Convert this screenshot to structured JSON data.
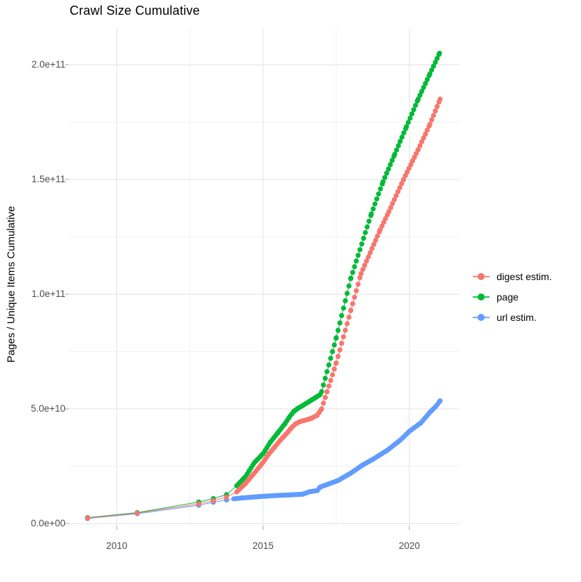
{
  "title": "Crawl Size Cumulative",
  "y_axis_title": "Pages / Unique Items Cumulative",
  "chart_data": {
    "type": "line",
    "title": "Crawl Size Cumulative",
    "xlabel": "",
    "ylabel": "Pages / Unique Items Cumulative",
    "grid": true,
    "legend_position": "right",
    "x_tick_labels": [
      "2010",
      "2015",
      "2020"
    ],
    "x_ticks": [
      2010,
      2015,
      2020
    ],
    "x_minor_ticks": [
      2012.5,
      2017.5
    ],
    "y_tick_labels": [
      "0.0e+00",
      "5.0e+10",
      "1.0e+11",
      "1.5e+11",
      "2.0e+11"
    ],
    "y_ticks_billions": [
      0,
      50,
      100,
      150,
      200
    ],
    "y_minor_ticks_billions": [
      25,
      75,
      125,
      175
    ],
    "xlim": [
      2008.4,
      2021.9
    ],
    "ylim_billions": [
      -1,
      216
    ],
    "unit_note": "y values stored in billions (1e9) of pages / unique items, cumulative",
    "series": [
      {
        "name": "url estim.",
        "color": "#619CFF",
        "points_year_billions": [
          [
            2009.0,
            2.2
          ],
          [
            2010.7,
            4.3
          ],
          [
            2012.8,
            8.0
          ],
          [
            2013.3,
            9.3
          ],
          [
            2013.75,
            10.3
          ],
          [
            2014.0,
            10.8
          ],
          [
            2014.3,
            11.2
          ],
          [
            2014.7,
            11.6
          ],
          [
            2015.0,
            11.9
          ],
          [
            2015.4,
            12.2
          ],
          [
            2015.9,
            12.5
          ],
          [
            2016.35,
            12.8
          ],
          [
            2016.6,
            13.9
          ],
          [
            2016.85,
            14.4
          ],
          [
            2016.95,
            15.9
          ],
          [
            2017.2,
            17.1
          ],
          [
            2017.55,
            18.7
          ],
          [
            2018.0,
            22.0
          ],
          [
            2018.4,
            25.5
          ],
          [
            2018.75,
            28.0
          ],
          [
            2019.25,
            32.0
          ],
          [
            2019.7,
            36.5
          ],
          [
            2020.0,
            40.2
          ],
          [
            2020.4,
            44.0
          ],
          [
            2020.7,
            48.5
          ],
          [
            2020.9,
            51.0
          ],
          [
            2021.05,
            53.5
          ]
        ]
      },
      {
        "name": "page",
        "color": "#00BA38",
        "points_year_billions": [
          [
            2009.0,
            2.6
          ],
          [
            2010.7,
            4.8
          ],
          [
            2012.8,
            9.4
          ],
          [
            2013.3,
            10.9
          ],
          [
            2013.75,
            12.6
          ],
          [
            2014.1,
            16.5
          ],
          [
            2014.4,
            20.5
          ],
          [
            2014.7,
            26.5
          ],
          [
            2015.0,
            30.5
          ],
          [
            2015.25,
            35.5
          ],
          [
            2015.5,
            39.5
          ],
          [
            2015.75,
            43.6
          ],
          [
            2015.92,
            46.8
          ],
          [
            2016.05,
            48.9
          ],
          [
            2016.2,
            50.3
          ],
          [
            2016.4,
            51.8
          ],
          [
            2016.6,
            53.4
          ],
          [
            2016.8,
            55.0
          ],
          [
            2016.95,
            56.2
          ],
          [
            2017.0,
            57.5
          ],
          [
            2017.5,
            81.0
          ],
          [
            2018.0,
            107.0
          ],
          [
            2018.7,
            135.0
          ],
          [
            2019.1,
            149.0
          ],
          [
            2019.5,
            161.0
          ],
          [
            2019.9,
            173.0
          ],
          [
            2020.3,
            185.0
          ],
          [
            2020.7,
            196.0
          ],
          [
            2021.03,
            205.0
          ]
        ]
      },
      {
        "name": "digest estim.",
        "color": "#F8766D",
        "points_year_billions": [
          [
            2009.0,
            2.4
          ],
          [
            2010.7,
            4.6
          ],
          [
            2012.8,
            8.6
          ],
          [
            2013.3,
            10.0
          ],
          [
            2013.75,
            11.5
          ],
          [
            2014.1,
            13.8
          ],
          [
            2014.4,
            17.5
          ],
          [
            2014.7,
            22.0
          ],
          [
            2015.0,
            26.7
          ],
          [
            2015.2,
            30.4
          ],
          [
            2015.4,
            33.4
          ],
          [
            2015.6,
            36.5
          ],
          [
            2015.8,
            39.2
          ],
          [
            2015.95,
            41.5
          ],
          [
            2016.1,
            43.4
          ],
          [
            2016.25,
            44.4
          ],
          [
            2016.45,
            45.1
          ],
          [
            2016.65,
            45.9
          ],
          [
            2016.85,
            47.2
          ],
          [
            2017.0,
            50.0
          ],
          [
            2017.5,
            70.0
          ],
          [
            2018.0,
            93.0
          ],
          [
            2018.35,
            109.0
          ],
          [
            2019.0,
            128.0
          ],
          [
            2019.3,
            136.0
          ],
          [
            2019.8,
            150.0
          ],
          [
            2020.3,
            163.0
          ],
          [
            2020.7,
            174.0
          ],
          [
            2021.05,
            185.0
          ]
        ]
      }
    ],
    "legend_order": [
      "digest estim.",
      "page",
      "url estim."
    ],
    "colors": {
      "digest_estim": "#F8766D",
      "page": "#00BA38",
      "url_estim": "#619CFF",
      "grid_major": "#E6E6E6",
      "grid_minor": "#F2F2F2",
      "axis_text": "#4D4D4D"
    }
  }
}
